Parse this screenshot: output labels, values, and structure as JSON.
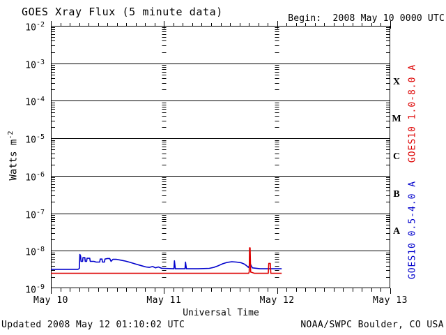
{
  "title": "GOES Xray Flux (5 minute data)",
  "begin_label": "Begin:  2008 May 10 0000 UTC",
  "footer": {
    "updated": "Updated 2008 May 12 01:10:02 UTC",
    "source": "NOAA/SWPC Boulder, CO USA"
  },
  "axes": {
    "ylabel_base": "Watts m",
    "ylabel_sup": "-2",
    "xlabel": "Universal Time",
    "x_tick_labels": [
      "May 10",
      "May 11",
      "May 12",
      "May 13"
    ],
    "y_exponents": [
      "-2",
      "-3",
      "-4",
      "-5",
      "-6",
      "-7",
      "-8",
      "-9"
    ]
  },
  "right_axis": {
    "flare_classes": [
      "X",
      "M",
      "C",
      "B",
      "A"
    ],
    "legends": [
      {
        "label": "GOES10 1.0-8.0 A",
        "color": "#dd0000"
      },
      {
        "label": "GOES10 0.5-4.0 A",
        "color": "#0000cc"
      }
    ]
  },
  "chart_data": {
    "type": "line",
    "title": "GOES Xray Flux (5 minute data)",
    "xlabel": "Universal Time",
    "ylabel": "Watts m^-2",
    "x_unit": "days since 2008 May 10 0000 UTC",
    "xlim": [
      0,
      3
    ],
    "x_tick_days": [
      0,
      1,
      2,
      3
    ],
    "x_minor_tick_hours": 2,
    "y_scale": "log10",
    "ylim": [
      1e-09,
      0.01
    ],
    "grid": "solid horizontal line at each decade; log-minor tick columns at interior day boundaries",
    "legend_position": "right margin, rotated",
    "flare_class_bands": {
      "X": "1e-4..1e-3",
      "M": "1e-5..1e-4",
      "C": "1e-6..1e-5",
      "B": "1e-7..1e-6",
      "A": "1e-8..1e-7"
    },
    "series": [
      {
        "name": "GOES10 0.5-4.0 A",
        "color": "#0000cc",
        "points": [
          [
            0.0,
            3.2e-09
          ],
          [
            0.24,
            3.2e-09
          ],
          [
            0.252,
            3.4e-09
          ],
          [
            0.256,
            8e-09
          ],
          [
            0.263,
            7.2e-09
          ],
          [
            0.267,
            5.2e-09
          ],
          [
            0.28,
            5.2e-09
          ],
          [
            0.284,
            6.6e-09
          ],
          [
            0.3,
            6.6e-09
          ],
          [
            0.304,
            5.2e-09
          ],
          [
            0.316,
            5.2e-09
          ],
          [
            0.32,
            6.3e-09
          ],
          [
            0.344,
            6.3e-09
          ],
          [
            0.348,
            5.2e-09
          ],
          [
            0.38,
            5.2e-09
          ],
          [
            0.4,
            5e-09
          ],
          [
            0.432,
            5e-09
          ],
          [
            0.436,
            6e-09
          ],
          [
            0.452,
            6e-09
          ],
          [
            0.456,
            5e-09
          ],
          [
            0.474,
            5e-09
          ],
          [
            0.478,
            6e-09
          ],
          [
            0.5,
            6.2e-09
          ],
          [
            0.52,
            6.2e-09
          ],
          [
            0.532,
            5.2e-09
          ],
          [
            0.548,
            5.9e-09
          ],
          [
            0.58,
            5.9e-09
          ],
          [
            0.62,
            5.6e-09
          ],
          [
            0.66,
            5.3e-09
          ],
          [
            0.7,
            4.9e-09
          ],
          [
            0.75,
            4.4e-09
          ],
          [
            0.8,
            4e-09
          ],
          [
            0.84,
            3.7e-09
          ],
          [
            0.87,
            3.6e-09
          ],
          [
            0.9,
            3.8e-09
          ],
          [
            0.925,
            3.5e-09
          ],
          [
            0.95,
            3.7e-09
          ],
          [
            0.98,
            3.4e-09
          ],
          [
            1.0,
            3.4e-09
          ],
          [
            1.088,
            3.3e-09
          ],
          [
            1.092,
            5.4e-09
          ],
          [
            1.1,
            3.3e-09
          ],
          [
            1.186,
            3.3e-09
          ],
          [
            1.19,
            5e-09
          ],
          [
            1.198,
            3.3e-09
          ],
          [
            1.3,
            3.3e-09
          ],
          [
            1.4,
            3.4e-09
          ],
          [
            1.44,
            3.6e-09
          ],
          [
            1.48,
            4e-09
          ],
          [
            1.52,
            4.5e-09
          ],
          [
            1.56,
            4.9e-09
          ],
          [
            1.6,
            5.1e-09
          ],
          [
            1.64,
            5e-09
          ],
          [
            1.68,
            4.8e-09
          ],
          [
            1.71,
            4.4e-09
          ],
          [
            1.73,
            4e-09
          ],
          [
            1.745,
            3.6e-09
          ],
          [
            1.757,
            4.1e-09
          ],
          [
            1.763,
            4.5e-09
          ],
          [
            1.772,
            3.9e-09
          ],
          [
            1.782,
            3.5e-09
          ],
          [
            1.85,
            3.3e-09
          ],
          [
            2.04,
            3.3e-09
          ]
        ]
      },
      {
        "name": "GOES10 1.0-8.0 A",
        "color": "#dd0000",
        "points": [
          [
            0.0,
            2.5e-09
          ],
          [
            1.748,
            2.5e-09
          ],
          [
            1.753,
            2.7e-09
          ],
          [
            1.756,
            1.2e-08
          ],
          [
            1.761,
            1.2e-08
          ],
          [
            1.766,
            2.7e-09
          ],
          [
            1.8,
            2.5e-09
          ],
          [
            1.922,
            2.5e-09
          ],
          [
            1.926,
            4.6e-09
          ],
          [
            1.94,
            4.6e-09
          ],
          [
            1.944,
            2.5e-09
          ],
          [
            2.04,
            2.5e-09
          ]
        ]
      }
    ]
  }
}
